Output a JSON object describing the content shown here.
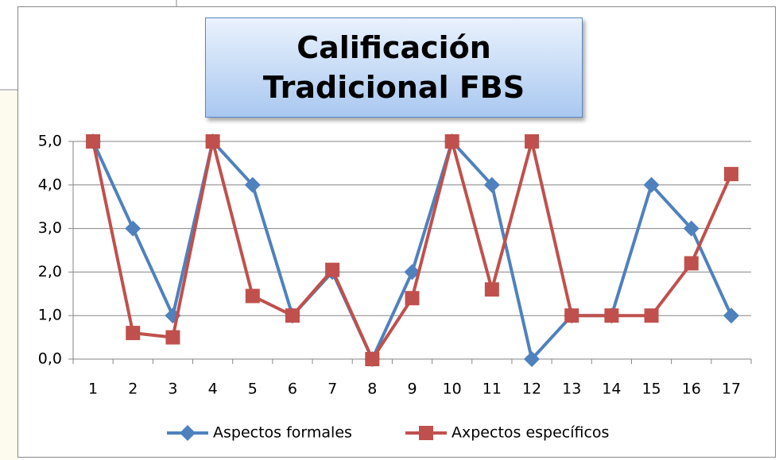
{
  "chart_data": {
    "type": "line",
    "title": "Calificación Tradicional FBS",
    "categories": [
      "1",
      "2",
      "3",
      "4",
      "5",
      "6",
      "7",
      "8",
      "9",
      "10",
      "11",
      "12",
      "13",
      "14",
      "15",
      "16",
      "17"
    ],
    "series": [
      {
        "name": "Aspectos formales",
        "color": "#4f81bd",
        "marker": "diamond",
        "values": [
          5,
          3,
          1,
          5,
          4,
          1,
          2,
          0,
          2,
          5,
          4,
          0,
          1,
          1,
          4,
          3,
          1
        ]
      },
      {
        "name": "Axpectos específicos",
        "color": "#c0504d",
        "marker": "square",
        "values": [
          5,
          0.6,
          0.5,
          5,
          1.45,
          1,
          2.05,
          0,
          1.4,
          5,
          1.6,
          5,
          1,
          1,
          1,
          2.2,
          4.25
        ]
      }
    ],
    "ylim": [
      0,
      5
    ],
    "yticks": [
      {
        "value": 0,
        "label": "0,0"
      },
      {
        "value": 1,
        "label": "1,0"
      },
      {
        "value": 2,
        "label": "2,0"
      },
      {
        "value": 3,
        "label": "3,0"
      },
      {
        "value": 4,
        "label": "4,0"
      },
      {
        "value": 5,
        "label": "5,0"
      }
    ],
    "grid": true,
    "legend": "bottom"
  }
}
